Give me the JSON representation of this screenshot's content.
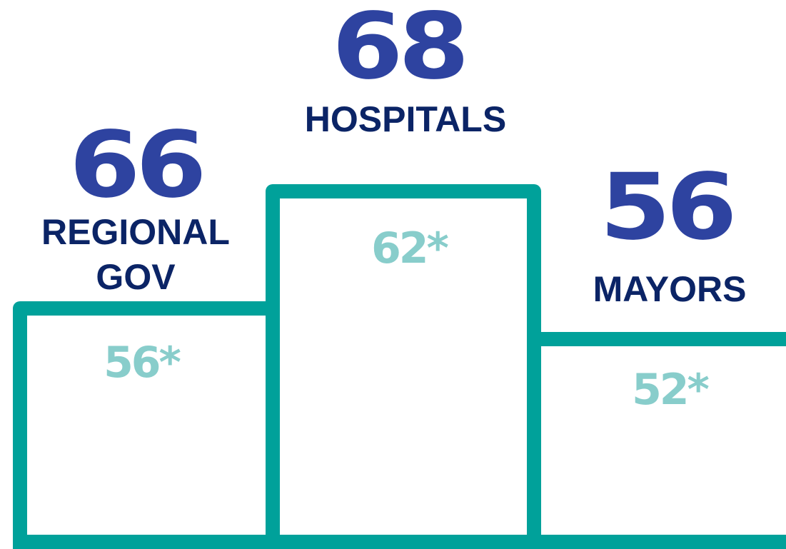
{
  "podium": [
    {
      "value": 66,
      "label": "REGIONAL GOV",
      "previous": "56*"
    },
    {
      "value": 68,
      "label": "HOSPITALS",
      "previous": "62*"
    },
    {
      "value": 56,
      "label": "MAYORS",
      "previous": "52*"
    }
  ]
}
